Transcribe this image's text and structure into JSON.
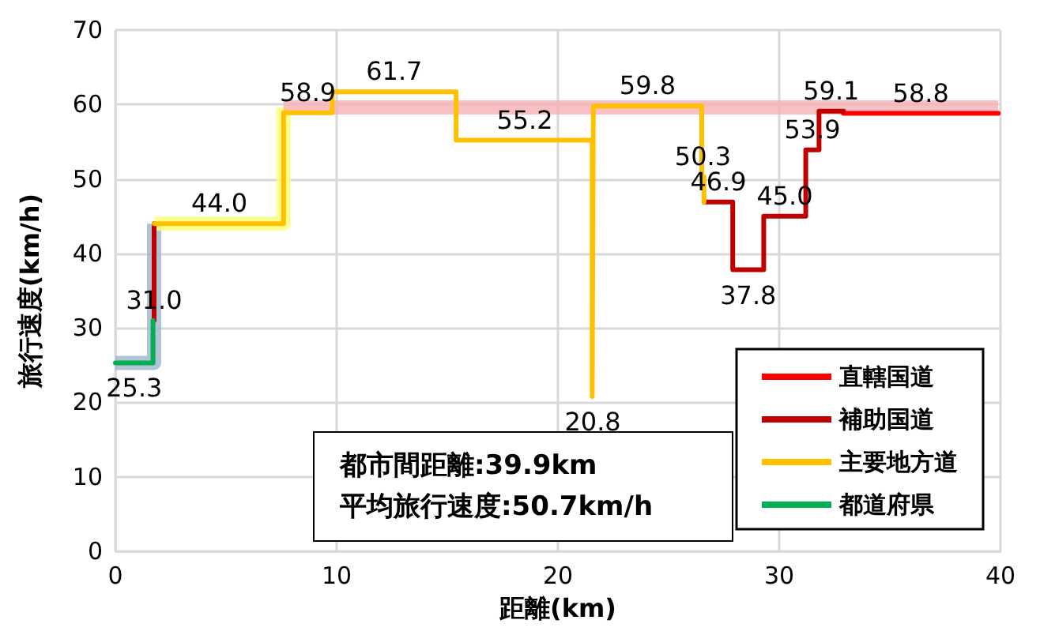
{
  "chart_data": {
    "type": "line",
    "xlabel": "距離(km)",
    "ylabel": "旅行速度(km/h)",
    "xlim": [
      0,
      40
    ],
    "xticks": [
      0,
      10,
      20,
      30,
      40
    ],
    "ylim": [
      0,
      70
    ],
    "yticks": [
      0,
      10,
      20,
      30,
      40,
      50,
      60,
      70
    ],
    "grid": true,
    "legend": "bottom right",
    "marker": "none",
    "line_style": "solid",
    "series": [
      {
        "color": "#9db4cc",
        "x": [
          0,
          1.75,
          1.75
        ],
        "values": [
          25.3,
          25.3,
          44
        ]
      },
      {
        "color": "#ffff70",
        "x": [
          1.75,
          7.6,
          7.6
        ],
        "values": [
          44,
          44,
          59.6
        ]
      },
      {
        "color": "#f6b0b4",
        "x": [
          7.6,
          39.9
        ],
        "values": [
          59.6,
          59.6
        ]
      },
      {
        "name": "直轄国道",
        "color": "#ff0000",
        "x": [
          32.9,
          32.9,
          39.9
        ],
        "values": [
          59.1,
          58.8,
          58.8
        ]
      },
      {
        "name": "補助国道",
        "color": "#c00000",
        "x": [
          1.75,
          1.75,
          null,
          26.6,
          27.9,
          27.9,
          29.3,
          29.3,
          31.2,
          31.2,
          31.8,
          31.8,
          32.9
        ],
        "values": [
          31,
          44,
          null,
          46.9,
          46.9,
          37.8,
          37.8,
          45,
          45,
          53.9,
          53.9,
          59.1,
          59.1
        ]
      },
      {
        "name": "主要地方道",
        "color": "#ffc000",
        "x": [
          1.75,
          7.6,
          7.6,
          9.8,
          9.8,
          15.4,
          15.4,
          21.55,
          21.55,
          21.6,
          21.6,
          26.5,
          26.5,
          26.6,
          26.6
        ],
        "values": [
          44,
          44,
          58.9,
          58.9,
          61.7,
          61.7,
          55.2,
          55.2,
          20.8,
          20.8,
          59.8,
          59.8,
          50.3,
          50.3,
          46.9
        ]
      },
      {
        "name": "都道府県",
        "color": "#00b050",
        "x": [
          0,
          1.7,
          1.7
        ],
        "values": [
          25.3,
          25.3,
          31
        ]
      }
    ],
    "annotations": [
      {
        "text": "25.3",
        "x": 0.85,
        "y": 25.3
      },
      {
        "text": "31.0",
        "x": 1.75,
        "y": 31
      },
      {
        "text": "44.0",
        "x": 4.7,
        "y": 44
      },
      {
        "text": "58.9",
        "x": 8.7,
        "y": 58.9
      },
      {
        "text": "61.7",
        "x": 12.6,
        "y": 61.7
      },
      {
        "text": "55.2",
        "x": 18.5,
        "y": 55.2
      },
      {
        "text": "20.8",
        "x": 21.575,
        "y": 20.8
      },
      {
        "text": "59.8",
        "x": 24.05,
        "y": 59.8
      },
      {
        "text": "50.3",
        "x": 26.55,
        "y": 50.3
      },
      {
        "text": "46.9",
        "x": 27.25,
        "y": 46.9
      },
      {
        "text": "37.8",
        "x": 28.6,
        "y": 37.8
      },
      {
        "text": "45.0",
        "x": 30.25,
        "y": 45
      },
      {
        "text": "53.9",
        "x": 31.5,
        "y": 53.9
      },
      {
        "text": "59.1",
        "x": 32.35,
        "y": 59.1
      },
      {
        "text": "58.8",
        "x": 36.4,
        "y": 58.8
      },
      "都市間距離:39.9km",
      "平均旅行速度:50.7km/h"
    ]
  }
}
